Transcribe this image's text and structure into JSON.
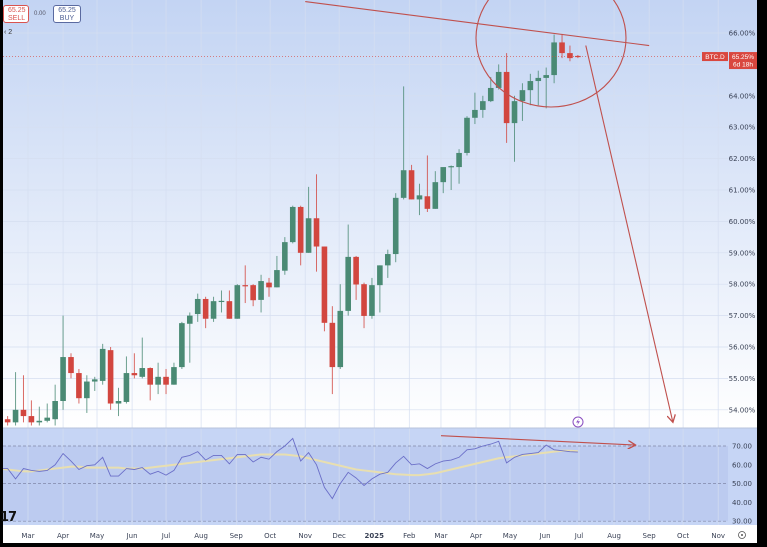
{
  "header": {
    "title": "",
    "sell_price": "65.25",
    "sell_label": "SELL",
    "spread": "0.00",
    "buy_price": "65.25",
    "buy_label": "BUY",
    "indicator_count": "2"
  },
  "logo": "17",
  "colors": {
    "up": "#4a8a74",
    "down": "#d2463f",
    "drawing": "#c0504d",
    "rsi": "#6b6fc8",
    "rsi_ma": "#e8dfb0",
    "badge": "#d9473f"
  },
  "price_badge": {
    "symbol": "BTC.D",
    "value": "65.25%",
    "countdown": "6d 18h"
  },
  "icons": {
    "alert": "lightning-icon",
    "settings": "settings-icon"
  },
  "chart_data": [
    {
      "type": "candlestick",
      "symbol": "BTC.D",
      "interval": "1W",
      "ylim": [
        53.4,
        67.0
      ],
      "y_ticks": [
        "66.00%",
        "65.00%",
        "64.00%",
        "63.00%",
        "62.00%",
        "61.00%",
        "60.00%",
        "59.00%",
        "58.00%",
        "57.00%",
        "56.00%",
        "55.00%",
        "54.00%"
      ],
      "y_tick_values": [
        66,
        65,
        64,
        63,
        62,
        61,
        60,
        59,
        58,
        57,
        56,
        55,
        54
      ],
      "grid": true,
      "columns": [
        "date",
        "open",
        "high",
        "low",
        "close"
      ],
      "candles": [
        [
          "2024-02-05",
          54.3,
          54.4,
          53.6,
          53.7
        ],
        [
          "2024-02-12",
          53.7,
          53.8,
          53.5,
          53.6
        ],
        [
          "2024-02-19",
          53.6,
          55.2,
          53.5,
          54.0
        ],
        [
          "2024-02-26",
          54.0,
          55.1,
          53.6,
          53.8
        ],
        [
          "2024-03-04",
          53.8,
          54.3,
          53.5,
          53.6
        ],
        [
          "2024-03-11",
          53.6,
          54.1,
          53.5,
          53.65
        ],
        [
          "2024-03-18",
          53.65,
          54.2,
          53.6,
          53.75
        ],
        [
          "2024-03-25",
          53.7,
          54.8,
          53.5,
          54.28
        ],
        [
          "2024-04-01",
          54.28,
          57.0,
          54.0,
          55.68
        ],
        [
          "2024-04-08",
          55.68,
          55.8,
          55.0,
          55.17
        ],
        [
          "2024-04-15",
          55.17,
          55.3,
          54.2,
          54.37
        ],
        [
          "2024-04-22",
          54.37,
          55.1,
          53.9,
          54.9
        ],
        [
          "2024-04-29",
          54.9,
          55.05,
          54.6,
          54.97
        ],
        [
          "2024-05-06",
          54.92,
          56.1,
          54.8,
          55.94
        ],
        [
          "2024-05-13",
          55.9,
          56.0,
          54.0,
          54.2
        ],
        [
          "2024-05-20",
          54.2,
          54.7,
          53.8,
          54.28
        ],
        [
          "2024-05-27",
          54.25,
          55.7,
          54.2,
          55.17
        ],
        [
          "2024-06-03",
          55.17,
          55.8,
          55.0,
          55.1
        ],
        [
          "2024-06-10",
          55.05,
          56.3,
          55.0,
          55.33
        ],
        [
          "2024-06-17",
          55.33,
          55.35,
          54.3,
          54.8
        ],
        [
          "2024-06-24",
          54.8,
          55.5,
          54.5,
          55.05
        ],
        [
          "2024-07-01",
          55.05,
          55.3,
          54.5,
          54.8
        ],
        [
          "2024-07-08",
          54.8,
          55.5,
          54.8,
          55.36
        ],
        [
          "2024-07-15",
          55.36,
          56.8,
          55.3,
          56.76
        ],
        [
          "2024-07-22",
          56.74,
          57.1,
          55.5,
          57.0
        ],
        [
          "2024-07-29",
          57.05,
          57.7,
          56.8,
          57.53
        ],
        [
          "2024-08-05",
          57.53,
          57.6,
          56.6,
          56.9
        ],
        [
          "2024-08-12",
          56.9,
          57.6,
          56.8,
          57.46
        ],
        [
          "2024-08-19",
          57.46,
          57.8,
          57.1,
          57.47
        ],
        [
          "2024-08-26",
          57.46,
          57.8,
          56.9,
          56.9
        ],
        [
          "2024-09-02",
          56.9,
          58.0,
          56.9,
          57.97
        ],
        [
          "2024-09-09",
          57.97,
          58.6,
          57.4,
          57.95
        ],
        [
          "2024-09-16",
          57.97,
          58.0,
          57.3,
          57.49
        ],
        [
          "2024-09-23",
          57.5,
          58.3,
          57.1,
          58.1
        ],
        [
          "2024-09-30",
          58.05,
          58.2,
          57.6,
          57.9
        ],
        [
          "2024-10-07",
          57.9,
          58.9,
          57.9,
          58.45
        ],
        [
          "2024-10-14",
          58.43,
          59.5,
          58.3,
          59.34
        ],
        [
          "2024-10-21",
          59.34,
          60.5,
          59.3,
          60.46
        ],
        [
          "2024-10-28",
          60.46,
          60.5,
          58.6,
          59.0
        ],
        [
          "2024-11-04",
          59.0,
          61.1,
          59.0,
          60.1
        ],
        [
          "2024-11-11",
          60.1,
          61.5,
          58.4,
          59.2
        ],
        [
          "2024-11-18",
          59.2,
          59.2,
          56.5,
          56.77
        ],
        [
          "2024-11-25",
          56.77,
          57.3,
          54.5,
          55.36
        ],
        [
          "2024-12-02",
          55.36,
          58.0,
          55.3,
          57.15
        ],
        [
          "2024-12-09",
          57.15,
          59.9,
          57.0,
          58.87
        ],
        [
          "2024-12-16",
          58.87,
          58.9,
          57.5,
          57.99
        ],
        [
          "2024-12-23",
          58.0,
          58.05,
          56.6,
          56.99
        ],
        [
          "2024-12-30",
          56.99,
          58.2,
          56.9,
          57.97
        ],
        [
          "2025-01-06",
          57.97,
          58.6,
          57.1,
          58.6
        ],
        [
          "2025-01-13",
          58.6,
          59.1,
          58.2,
          58.96
        ],
        [
          "2025-01-20",
          58.96,
          60.9,
          58.7,
          60.75
        ],
        [
          "2025-01-27",
          60.75,
          64.3,
          60.7,
          61.63
        ],
        [
          "2025-02-03",
          61.63,
          61.8,
          60.7,
          60.7
        ],
        [
          "2025-02-10",
          60.7,
          61.2,
          60.2,
          60.83
        ],
        [
          "2025-02-17",
          60.8,
          62.1,
          60.3,
          60.4
        ],
        [
          "2025-02-24",
          60.4,
          61.6,
          60.4,
          61.25
        ],
        [
          "2025-03-03",
          61.25,
          61.6,
          60.9,
          61.73
        ],
        [
          "2025-03-10",
          61.73,
          61.78,
          61.0,
          61.76
        ],
        [
          "2025-03-17",
          61.73,
          62.3,
          61.2,
          62.18
        ],
        [
          "2025-03-24",
          62.18,
          63.35,
          62.1,
          63.3
        ],
        [
          "2025-03-31",
          63.3,
          64.1,
          63.1,
          63.55
        ],
        [
          "2025-04-07",
          63.55,
          64.0,
          63.3,
          63.83
        ],
        [
          "2025-04-14",
          63.83,
          64.6,
          63.8,
          64.25
        ],
        [
          "2025-04-21",
          64.25,
          65.0,
          64.2,
          64.76
        ],
        [
          "2025-04-28",
          64.76,
          65.36,
          62.5,
          63.13
        ],
        [
          "2025-05-05",
          63.13,
          64.0,
          61.9,
          63.83
        ],
        [
          "2025-05-12",
          63.83,
          64.4,
          63.2,
          64.18
        ],
        [
          "2025-05-19",
          64.18,
          64.7,
          63.7,
          64.47
        ],
        [
          "2025-05-26",
          64.47,
          64.8,
          63.7,
          64.57
        ],
        [
          "2025-06-02",
          64.57,
          64.9,
          63.6,
          64.66
        ],
        [
          "2025-06-09",
          64.66,
          65.95,
          64.4,
          65.7
        ],
        [
          "2025-06-16",
          65.7,
          65.97,
          65.2,
          65.36
        ],
        [
          "2025-06-23",
          65.36,
          65.6,
          65.1,
          65.2
        ],
        [
          "2025-06-30",
          65.27,
          65.3,
          65.2,
          65.25
        ]
      ],
      "last_price": 65.25
    },
    {
      "type": "line",
      "indicator": "RSI",
      "ylim": [
        28,
        78
      ],
      "y_ticks": [
        "70.00",
        "60.00",
        "50.00",
        "40.00",
        "30.00"
      ],
      "y_tick_values": [
        70,
        60,
        50,
        40,
        30
      ],
      "bands": [
        70,
        50,
        30
      ],
      "series": [
        {
          "values": [
            58,
            58,
            52.5,
            58,
            57,
            56.5,
            57,
            60,
            66,
            62,
            57.5,
            59.5,
            60,
            64,
            54,
            54,
            58,
            57.5,
            58.5,
            55,
            56.5,
            54.5,
            57,
            64,
            65,
            67,
            62.5,
            65,
            65,
            60.5,
            65.5,
            65.5,
            61.5,
            64,
            63,
            67,
            70,
            74,
            62,
            66.5,
            60,
            48,
            42,
            50,
            56,
            53,
            49,
            52.5,
            55,
            56,
            61,
            64.5,
            60,
            60.5,
            58,
            60.5,
            62,
            62.5,
            64,
            68,
            68.5,
            70,
            71,
            72.5,
            61,
            64,
            65.5,
            66,
            66.5,
            70.5,
            68,
            67.5,
            67,
            66.8
          ]
        },
        {
          "values": [
            58,
            57.5,
            57,
            56.5,
            56.5,
            57,
            57.5,
            58,
            58.5,
            59,
            59,
            58.5,
            58.5,
            58.5,
            58.5,
            58.5,
            58,
            58,
            58,
            58.5,
            59,
            59.5,
            60,
            60.5,
            61,
            61.5,
            62,
            62.5,
            63,
            63.5,
            64,
            64.5,
            65,
            65.5,
            65.5,
            65.5,
            65.5,
            65,
            64.5,
            63.5,
            62.5,
            61.5,
            60.5,
            59.5,
            58.5,
            57.5,
            57,
            56.5,
            56,
            55.5,
            55,
            54.8,
            54.5,
            54.5,
            55,
            55.5,
            56.5,
            57.5,
            58.5,
            59.5,
            60.5,
            61.5,
            62.5,
            63.5,
            64,
            64.5,
            65,
            65.5,
            66,
            66.5,
            67,
            67.5,
            67.5,
            67.2
          ]
        }
      ]
    }
  ],
  "x_axis": {
    "ticks": [
      {
        "label": "Mar",
        "date": "2024-03-01"
      },
      {
        "label": "Apr",
        "date": "2024-04-01"
      },
      {
        "label": "May",
        "date": "2024-05-01"
      },
      {
        "label": "Jun",
        "date": "2024-06-01"
      },
      {
        "label": "Jul",
        "date": "2024-07-01"
      },
      {
        "label": "Aug",
        "date": "2024-08-01"
      },
      {
        "label": "Sep",
        "date": "2024-09-01"
      },
      {
        "label": "Oct",
        "date": "2024-10-01"
      },
      {
        "label": "Nov",
        "date": "2024-11-01"
      },
      {
        "label": "Dec",
        "date": "2024-12-01"
      },
      {
        "label": "2025",
        "date": "2025-01-01"
      },
      {
        "label": "Feb",
        "date": "2025-02-01"
      },
      {
        "label": "Mar",
        "date": "2025-03-01"
      },
      {
        "label": "Apr",
        "date": "2025-04-01"
      },
      {
        "label": "May",
        "date": "2025-05-01"
      },
      {
        "label": "Jun",
        "date": "2025-06-01"
      },
      {
        "label": "Jul",
        "date": "2025-07-01"
      },
      {
        "label": "Aug",
        "date": "2025-08-01"
      },
      {
        "label": "Sep",
        "date": "2025-09-01"
      },
      {
        "label": "Oct",
        "date": "2025-10-01"
      },
      {
        "label": "Nov",
        "date": "2025-11-01"
      }
    ]
  },
  "drawings": [
    {
      "type": "trendline",
      "pane": "price",
      "from": [
        "2024-11-01",
        67.0
      ],
      "to": [
        "2025-09-01",
        65.6
      ]
    },
    {
      "type": "circle",
      "pane": "price",
      "around": "2025-04 to 2025-06 top"
    },
    {
      "type": "arrow",
      "pane": "price",
      "from": [
        "2025-07-07",
        65.6
      ],
      "to": [
        "2025-09-22",
        53.6
      ]
    },
    {
      "type": "arrow",
      "pane": "rsi",
      "from": [
        "2025-03-01",
        75.5
      ],
      "to": [
        "2025-08-20",
        70.5
      ]
    }
  ]
}
